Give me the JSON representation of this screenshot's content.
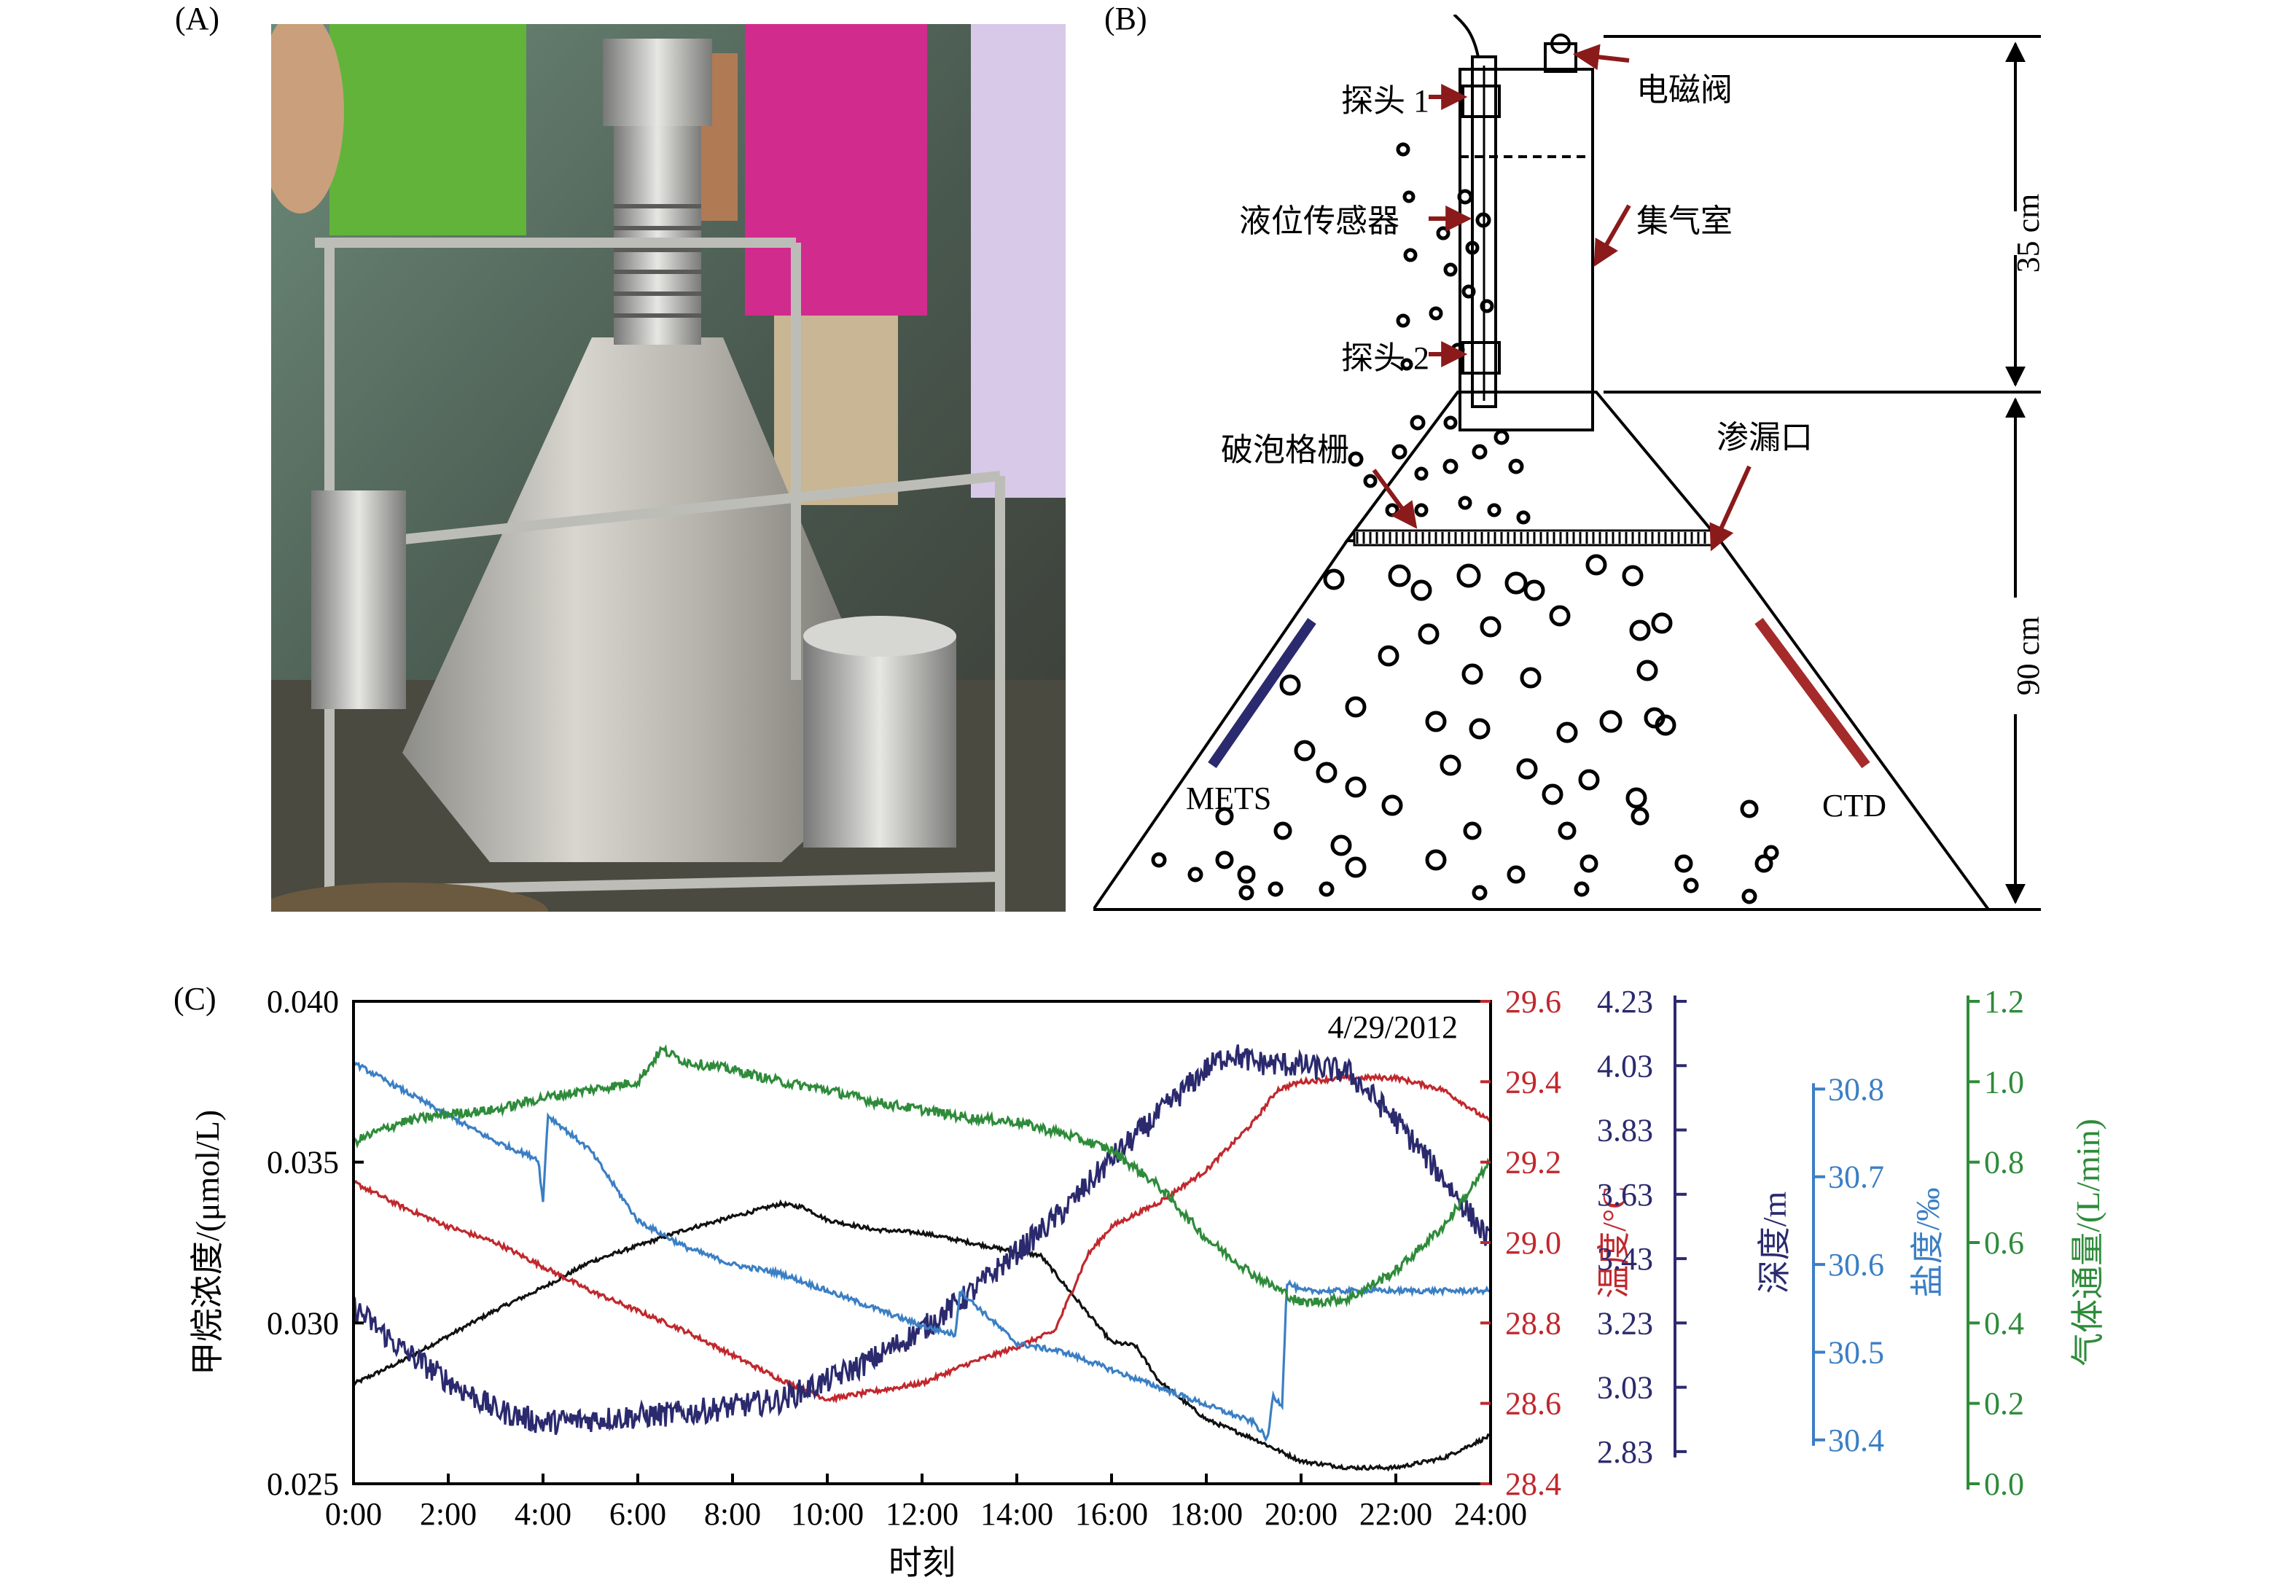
{
  "panels": {
    "a": "(A)",
    "b": "(B)",
    "c": "(C)"
  },
  "diagram": {
    "probe1": "探头 1",
    "probe2": "探头 2",
    "solenoid_valve": "电磁阀",
    "level_sensor": "液位传感器",
    "gas_chamber": "集气室",
    "bubble_grid": "破泡格栅",
    "leak_port": "渗漏口",
    "mets": "METS",
    "ctd": "CTD",
    "height_upper": "35 cm",
    "height_lower": "90 cm"
  },
  "colors": {
    "methane": "#111111",
    "temperature": "#c0282d",
    "depth": "#2b2a6e",
    "salinity": "#3b7fc4",
    "gas_flux": "#2e8b3a",
    "arrow": "#8b1a1a",
    "mets_bar": "#2b2a6e",
    "ctd_bar": "#a52a2a"
  },
  "chart_data": {
    "type": "line",
    "date_label": "4/29/2012",
    "xlabel": "时刻",
    "x_ticks": [
      "0:00",
      "2:00",
      "4:00",
      "6:00",
      "8:00",
      "10:00",
      "12:00",
      "14:00",
      "16:00",
      "18:00",
      "20:00",
      "22:00",
      "24:00"
    ],
    "xlim": [
      0,
      24
    ],
    "axes": [
      {
        "key": "methane",
        "label": "甲烷浓度/(μmol/L)",
        "ylim": [
          0.025,
          0.04
        ],
        "ticks": [
          "0.025",
          "0.030",
          "0.035",
          "0.040"
        ],
        "tick_values": [
          0.025,
          0.03,
          0.035,
          0.04
        ]
      },
      {
        "key": "temperature",
        "label": "温度/°C",
        "ylim": [
          28.4,
          29.6
        ],
        "ticks": [
          "28.4",
          "28.6",
          "28.8",
          "29.0",
          "29.2",
          "29.4",
          "29.6"
        ],
        "tick_values": [
          28.4,
          28.6,
          28.8,
          29.0,
          29.2,
          29.4,
          29.6
        ]
      },
      {
        "key": "depth",
        "label": "深度/m",
        "ylim": [
          2.73,
          4.23
        ],
        "ticks": [
          "2.83",
          "3.03",
          "3.23",
          "3.43",
          "3.63",
          "3.83",
          "4.03",
          "4.23"
        ],
        "tick_values": [
          2.83,
          3.03,
          3.23,
          3.43,
          3.63,
          3.83,
          4.03,
          4.23
        ]
      },
      {
        "key": "salinity",
        "label": "盐度/‰",
        "ylim": [
          30.35,
          30.9
        ],
        "ticks": [
          "30.4",
          "30.5",
          "30.6",
          "30.7",
          "30.8"
        ],
        "tick_values": [
          30.4,
          30.5,
          30.6,
          30.7,
          30.8
        ]
      },
      {
        "key": "gas_flux",
        "label": "气体通量/(L/min)",
        "ylim": [
          0.0,
          1.2
        ],
        "ticks": [
          "0.0",
          "0.2",
          "0.4",
          "0.6",
          "0.8",
          "1.0",
          "1.2"
        ],
        "tick_values": [
          0.0,
          0.2,
          0.4,
          0.6,
          0.8,
          1.0,
          1.2
        ]
      }
    ],
    "series": [
      {
        "key": "methane",
        "noise": 6e-05,
        "x": [
          0,
          1,
          2,
          3,
          4,
          5,
          6,
          7,
          8,
          9,
          9.5,
          10,
          11,
          12,
          13,
          14,
          14.5,
          15,
          16,
          16.5,
          17,
          18,
          19,
          20,
          21,
          22,
          23,
          24
        ],
        "y": [
          0.0281,
          0.0288,
          0.0296,
          0.0304,
          0.0311,
          0.0319,
          0.0324,
          0.0329,
          0.0333,
          0.0337,
          0.0336,
          0.0332,
          0.0329,
          0.0328,
          0.0325,
          0.0322,
          0.0321,
          0.0312,
          0.0294,
          0.0293,
          0.0282,
          0.027,
          0.0264,
          0.0257,
          0.0255,
          0.0255,
          0.0258,
          0.0265
        ]
      },
      {
        "key": "temperature",
        "noise": 0.006,
        "x": [
          0,
          1,
          2,
          3,
          4,
          5,
          6,
          7,
          8,
          9,
          10,
          11,
          12,
          13,
          14,
          14.8,
          15.5,
          16,
          17,
          18,
          19,
          19.5,
          20,
          21,
          22,
          23,
          24
        ],
        "y": [
          29.15,
          29.09,
          29.04,
          29.0,
          28.94,
          28.88,
          28.83,
          28.78,
          28.72,
          28.66,
          28.61,
          28.63,
          28.65,
          28.7,
          28.74,
          28.78,
          28.97,
          29.04,
          29.1,
          29.18,
          29.3,
          29.38,
          29.4,
          29.41,
          29.41,
          29.38,
          29.3
        ]
      },
      {
        "key": "depth",
        "noise": 0.04,
        "x": [
          0,
          1,
          2,
          3,
          4,
          5,
          6,
          7,
          8,
          9,
          10,
          11,
          12,
          13,
          14,
          15,
          16,
          17,
          18,
          18.5,
          19,
          20,
          21,
          22,
          23,
          24
        ],
        "y": [
          3.28,
          3.15,
          3.05,
          2.96,
          2.92,
          2.93,
          2.94,
          2.95,
          2.97,
          2.99,
          3.05,
          3.12,
          3.21,
          3.32,
          3.45,
          3.58,
          3.74,
          3.88,
          4.02,
          4.07,
          4.04,
          4.03,
          4.01,
          3.86,
          3.68,
          3.48
        ]
      },
      {
        "key": "salinity",
        "noise": 0.003,
        "x": [
          0,
          1,
          2,
          3,
          3.9,
          4.0,
          4.1,
          5,
          6,
          7,
          8,
          9,
          10,
          11,
          12,
          12.7,
          12.8,
          13,
          14,
          15,
          16,
          17,
          18,
          19,
          19.3,
          19.4,
          19.6,
          19.7,
          20,
          21,
          22,
          23,
          24
        ],
        "y": [
          30.83,
          30.8,
          30.77,
          30.74,
          30.72,
          30.67,
          30.77,
          30.73,
          30.65,
          30.62,
          30.6,
          30.59,
          30.57,
          30.55,
          30.53,
          30.52,
          30.57,
          30.56,
          30.51,
          30.5,
          30.48,
          30.46,
          30.44,
          30.42,
          30.4,
          30.45,
          30.44,
          30.58,
          30.57,
          30.57,
          30.57,
          30.57,
          30.57
        ]
      },
      {
        "key": "gas_flux",
        "noise": 0.012,
        "x": [
          0,
          1,
          2,
          3,
          4,
          5,
          6,
          6.5,
          7,
          8,
          9,
          10,
          11,
          12,
          13,
          14,
          15,
          16,
          17,
          18,
          19,
          20,
          21,
          22,
          23,
          24
        ],
        "y": [
          0.85,
          0.9,
          0.92,
          0.93,
          0.96,
          0.98,
          1.0,
          1.08,
          1.05,
          1.03,
          1.0,
          0.98,
          0.95,
          0.93,
          0.91,
          0.9,
          0.87,
          0.83,
          0.74,
          0.61,
          0.52,
          0.45,
          0.46,
          0.53,
          0.64,
          0.8
        ]
      }
    ]
  }
}
